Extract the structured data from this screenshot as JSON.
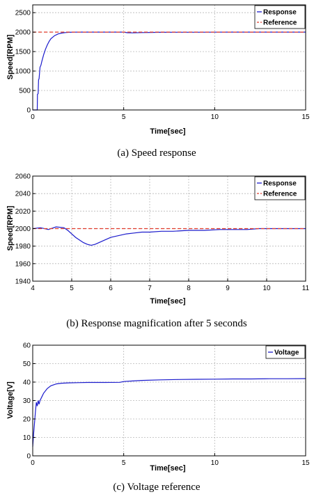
{
  "chart_data": [
    {
      "type": "line",
      "caption": "(a)  Speed  response",
      "xlabel": "Time[sec]",
      "ylabel": "Speed[RPM]",
      "xlim": [
        0,
        15
      ],
      "ylim": [
        0,
        2700
      ],
      "xticks": [
        "0",
        "5",
        "10",
        "15"
      ],
      "yticks": [
        "0",
        "500",
        "1000",
        "1500",
        "2000",
        "2500"
      ],
      "xtick_values": [
        0,
        5,
        10,
        15
      ],
      "ytick_values": [
        0,
        500,
        1000,
        1500,
        2000,
        2500
      ],
      "grid": true,
      "legend_position": "top-right",
      "series": [
        {
          "name": "Response",
          "color": "#1a1acc",
          "style": "solid",
          "x": [
            0,
            0.25,
            0.26,
            0.3,
            0.32,
            0.35,
            0.4,
            0.45,
            0.5,
            0.6,
            0.7,
            0.8,
            0.9,
            1.0,
            1.2,
            1.4,
            1.6,
            1.8,
            2.0,
            2.3,
            2.6,
            3.0,
            3.5,
            4.0,
            4.5,
            5.0,
            5.2,
            5.5,
            6.0,
            6.5,
            7.0,
            8.0,
            9.0,
            10.0,
            11.0,
            12.0,
            12.5,
            13.0,
            13.5,
            14.0,
            15.0
          ],
          "y": [
            0,
            0,
            400,
            420,
            780,
            800,
            1100,
            1150,
            1250,
            1420,
            1560,
            1670,
            1760,
            1830,
            1910,
            1955,
            1975,
            1988,
            1995,
            1999,
            2000,
            2000,
            2000,
            2000,
            2000,
            2000,
            1985,
            1982,
            1988,
            1992,
            1995,
            1997,
            1998,
            1999,
            2000,
            2000,
            2000,
            2000,
            2000,
            2000,
            2000
          ]
        },
        {
          "name": "Reference",
          "color": "#e03a2a",
          "style": "dashed",
          "x": [
            0,
            15
          ],
          "y": [
            2000,
            2000
          ]
        }
      ]
    },
    {
      "type": "line",
      "caption": "(b)  Response  magnification  after  5  seconds",
      "xlabel": "Time[sec]",
      "ylabel": "Speed[RPM]",
      "xlim": [
        4,
        11
      ],
      "ylim": [
        1940,
        2060
      ],
      "xticks": [
        "4",
        "5",
        "6",
        "7",
        "8",
        "9",
        "10",
        "11"
      ],
      "yticks": [
        "1940",
        "1960",
        "1980",
        "2000",
        "2020",
        "2040",
        "2060"
      ],
      "xtick_values": [
        4,
        5,
        6,
        7,
        8,
        9,
        10,
        11
      ],
      "ytick_values": [
        1940,
        1960,
        1980,
        2000,
        2020,
        2040,
        2060
      ],
      "grid": true,
      "legend_position": "top-right",
      "series": [
        {
          "name": "Response",
          "color": "#1a1acc",
          "style": "solid",
          "x": [
            4.0,
            4.2,
            4.4,
            4.6,
            4.8,
            4.9,
            5.0,
            5.1,
            5.2,
            5.3,
            5.4,
            5.5,
            5.6,
            5.7,
            5.8,
            5.9,
            6.0,
            6.2,
            6.4,
            6.6,
            6.8,
            7.0,
            7.3,
            7.6,
            8.0,
            8.4,
            8.8,
            9.0,
            9.2,
            9.5,
            9.8,
            10.0,
            10.3,
            10.6,
            11.0
          ],
          "y": [
            2000,
            2001,
            1999,
            2002,
            2001,
            1998,
            1994,
            1990,
            1987,
            1984,
            1982,
            1981,
            1982,
            1984,
            1986,
            1988,
            1990,
            1992,
            1994,
            1995,
            1996,
            1996,
            1997,
            1997,
            1998,
            1998,
            1999,
            1999,
            1999,
            1999,
            2000,
            2000,
            2000,
            2000,
            2000
          ]
        },
        {
          "name": "Reference",
          "color": "#e03a2a",
          "style": "dashed",
          "x": [
            4,
            11
          ],
          "y": [
            2000,
            2000
          ]
        }
      ]
    },
    {
      "type": "line",
      "caption": "(c)  Voltage  reference",
      "xlabel": "Time[sec]",
      "ylabel": "Voltage[V]",
      "xlim": [
        0,
        15
      ],
      "ylim": [
        0,
        60
      ],
      "xticks": [
        "0",
        "5",
        "10",
        "15"
      ],
      "yticks": [
        "0",
        "10",
        "20",
        "30",
        "40",
        "50",
        "60"
      ],
      "xtick_values": [
        0,
        5,
        10,
        15
      ],
      "ytick_values": [
        0,
        10,
        20,
        30,
        40,
        50,
        60
      ],
      "grid": true,
      "legend_position": "top-right",
      "series": [
        {
          "name": "Voltage",
          "color": "#1a1acc",
          "style": "solid",
          "x": [
            0,
            0.05,
            0.1,
            0.15,
            0.2,
            0.25,
            0.3,
            0.35,
            0.4,
            0.5,
            0.6,
            0.8,
            1.0,
            1.3,
            1.6,
            2.0,
            2.5,
            3.0,
            4.0,
            4.8,
            5.0,
            5.5,
            6.0,
            7.0,
            8.0,
            9.0,
            10.0,
            11.0,
            12.0,
            13.0,
            14.0,
            15.0
          ],
          "y": [
            5,
            12,
            18,
            24,
            29,
            27,
            30,
            28,
            30,
            32,
            34,
            36.5,
            38,
            39,
            39.4,
            39.6,
            39.7,
            39.8,
            39.8,
            39.9,
            40.3,
            40.6,
            40.9,
            41.2,
            41.4,
            41.5,
            41.6,
            41.7,
            41.7,
            41.8,
            41.8,
            41.9
          ]
        }
      ]
    }
  ]
}
